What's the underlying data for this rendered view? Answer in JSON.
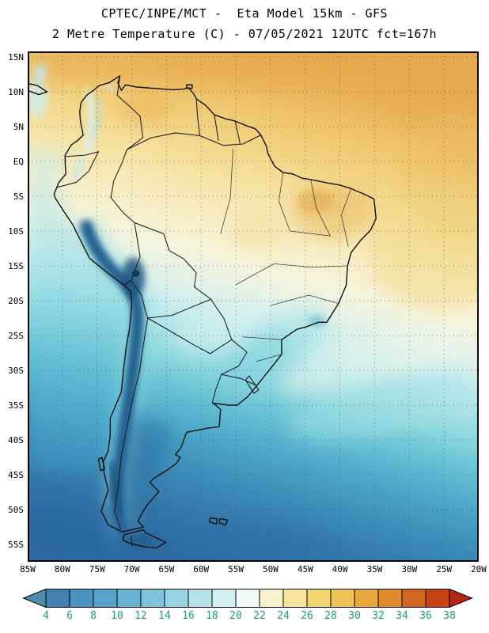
{
  "title": {
    "line1": "CPTEC/INPE/MCT -  Eta Model 15km - GFS",
    "line2": "2 Metre Temperature (C) - 07/05/2021 12UTC fct=167h"
  },
  "map": {
    "lat_labels": [
      "15N",
      "10N",
      "5N",
      "EQ",
      "5S",
      "10S",
      "15S",
      "20S",
      "25S",
      "30S",
      "35S",
      "40S",
      "45S",
      "50S",
      "55S"
    ],
    "lon_labels": [
      "85W",
      "80W",
      "75W",
      "70W",
      "65W",
      "60W",
      "55W",
      "50W",
      "45W",
      "40W",
      "35W",
      "30W",
      "25W",
      "20W"
    ]
  },
  "colorbar": {
    "tick_labels": [
      "4",
      "6",
      "8",
      "10",
      "12",
      "14",
      "16",
      "18",
      "20",
      "22",
      "24",
      "26",
      "28",
      "30",
      "32",
      "34",
      "36",
      "38"
    ],
    "colors": [
      "#4e8cb0",
      "#4182b2",
      "#4b93c0",
      "#58a3c9",
      "#68b3d2",
      "#7ec4da",
      "#97d3e2",
      "#b3e2ea",
      "#d2eff2",
      "#eefaf8",
      "#f8f2cc",
      "#f5e49a",
      "#f2d570",
      "#eec254",
      "#e8a83e",
      "#de8a2d",
      "#d4671f",
      "#c84314",
      "#b22810"
    ],
    "label_color": "#1f9a84"
  },
  "chart_data": {
    "type": "heatmap",
    "title": "2 Metre Temperature (C)",
    "source": "CPTEC/INPE/MCT",
    "model": "Eta Model 15km - GFS",
    "valid_time": "07/05/2021 12UTC",
    "forecast": "fct=167h",
    "units": "C",
    "region": "South America",
    "colorbar_values": [
      4,
      6,
      8,
      10,
      12,
      14,
      16,
      18,
      20,
      22,
      24,
      26,
      28,
      30,
      32,
      34,
      36,
      38
    ],
    "lat_ticks": [
      "15N",
      "10N",
      "5N",
      "EQ",
      "5S",
      "10S",
      "15S",
      "20S",
      "25S",
      "30S",
      "35S",
      "40S",
      "45S",
      "50S",
      "55S"
    ],
    "lon_ticks": [
      "85W",
      "80W",
      "75W",
      "70W",
      "65W",
      "60W",
      "55W",
      "50W",
      "45W",
      "40W",
      "35W",
      "30W",
      "25W",
      "20W"
    ],
    "legend_position": "bottom"
  }
}
